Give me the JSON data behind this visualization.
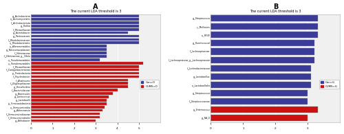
{
  "panel_A": {
    "title": "The current LDA threshold is 3",
    "panel_label": "A",
    "blue_labels": [
      "g__Actinobacteria",
      "o__Actinomycetales",
      "f__Actinobacteriota",
      "g__Rothia",
      "f__Moraxellaceae",
      "g__Acinetobacter",
      "g__Pasteuraceae",
      "f__Rhodobacteraceae",
      "o__Rhodobacterales",
      "o__Alteromonadales",
      "g__Nitrosomonadaceae",
      "f__Vibrionaceae",
      "f__Vibrionaceae_g__Vibrio",
      "o__Pseudomonadales"
    ],
    "blue_values": [
      5.0,
      5.0,
      5.0,
      5.0,
      5.0,
      4.5,
      5.0,
      5.0,
      5.0,
      3.5,
      3.5,
      3.5,
      3.5,
      3.2
    ],
    "red_labels": [
      "o__Pseudomonadales",
      "f__Moraxellaceae",
      "f__Campylobacteraceae",
      "p__Proteobacteria",
      "f__Psychrobacter",
      "f__Alcalescens",
      "f__Oligotrophiaceae",
      "g__Desulfovibrio",
      "f__Bacteroidaceae",
      "g__Bacteroides",
      "g__Lactococcus",
      "g__Lactobacilli",
      "p__Firmicautobacteria",
      "o__Verrucomicrobia",
      "g__Akkermansia",
      "f__Verrucomicrobiaceae",
      "f__Verrucomicrobiales",
      "g__Arthobacter"
    ],
    "red_values": [
      5.2,
      5.0,
      5.0,
      5.0,
      5.0,
      4.5,
      4.5,
      4.5,
      4.0,
      3.8,
      3.6,
      3.5,
      3.5,
      3.4,
      3.3,
      3.2,
      3.2,
      3.0
    ],
    "blue_color": "#3b3b9a",
    "red_color": "#cc1111",
    "legend_blue": "Con=O",
    "legend_red": "CUMS=O",
    "xlim": [
      0,
      6
    ],
    "xticks": [
      0,
      1,
      2,
      3,
      4,
      5
    ]
  },
  "panel_B": {
    "title": "The current LDA threshold is 3",
    "panel_label": "B",
    "blue_labels": [
      "g__Streptococcus",
      "c__Mollicutes",
      "o__RF39",
      "g__Ruminococcal",
      "f__Lachnospiraceae",
      "f__Lachnospiraceae_g__Lachnospiraceae",
      "f__Lachnobacteriaceae",
      "g__Lactobacillus",
      "o__Lactobacillales",
      "g__Streptococcus",
      "f__Streptococcaceae"
    ],
    "blue_values": [
      3.3,
      3.3,
      3.3,
      3.2,
      3.2,
      3.2,
      3.1,
      3.1,
      3.1,
      3.0,
      3.0
    ],
    "red_labels": [
      "g__Enterococcus",
      "g__NA_G"
    ],
    "red_values": [
      3.3,
      3.0
    ],
    "blue_color": "#3b3b9a",
    "red_color": "#cc1111",
    "legend_blue": "Con=G",
    "legend_red": "CUMS=G",
    "xlim": [
      0,
      4
    ],
    "xticks": [
      0,
      1,
      2,
      3
    ]
  },
  "fig_width": 5.0,
  "fig_height": 1.95,
  "dpi": 100
}
